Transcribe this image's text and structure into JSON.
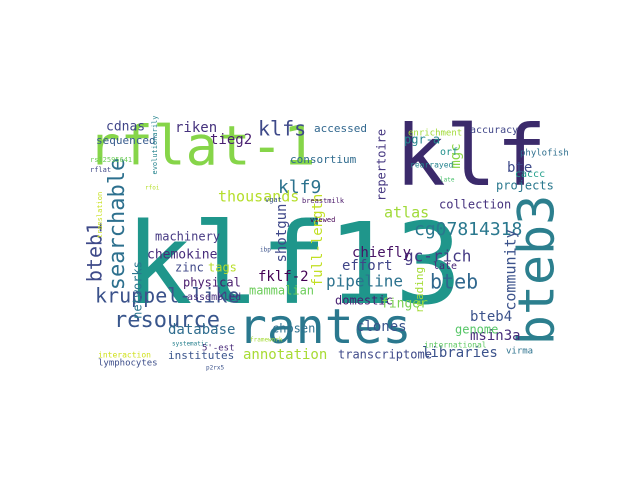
{
  "words": [
    {
      "text": "klf13",
      "color": "#1f968b"
    },
    {
      "text": "klf",
      "color": "#3b2a6b"
    },
    {
      "text": "rflat-1",
      "color": "#86d549"
    },
    {
      "text": "rantes",
      "color": "#2a788e"
    },
    {
      "text": "bteb3",
      "color": "#2c7f8e"
    },
    {
      "text": "bteb1",
      "color": "#3e4a89"
    },
    {
      "text": "searchable",
      "color": "#2d708e"
    },
    {
      "text": "kruppel-like",
      "color": "#3b528b"
    },
    {
      "text": "resource",
      "color": "#39568c"
    },
    {
      "text": "klfs",
      "color": "#3e4989"
    },
    {
      "text": "klf9",
      "color": "#2c728e"
    },
    {
      "text": "bteb",
      "color": "#31688e"
    },
    {
      "text": "cg07814318",
      "color": "#2a788e"
    },
    {
      "text": "atlas",
      "color": "#a0da39"
    },
    {
      "text": "gc-rich",
      "color": "#443983"
    },
    {
      "text": "pipeline",
      "color": "#2c728e"
    },
    {
      "text": "community",
      "color": "#3b528b"
    },
    {
      "text": "full-length",
      "color": "#c2df23"
    },
    {
      "text": "shotgun",
      "color": "#3f4889"
    },
    {
      "text": "thousands",
      "color": "#b5de2b"
    },
    {
      "text": "riken",
      "color": "#46337e"
    },
    {
      "text": "tieg2",
      "color": "#481f70"
    },
    {
      "text": "cdnas",
      "color": "#404588"
    },
    {
      "text": "sequenced",
      "color": "#375b8d"
    },
    {
      "text": "machinery",
      "color": "#453882"
    },
    {
      "text": "chemokine",
      "color": "#472d7b"
    },
    {
      "text": "annotation",
      "color": "#a8db34"
    },
    {
      "text": "transcriptome",
      "color": "#3e4989"
    },
    {
      "text": "libraries",
      "color": "#3b528b"
    },
    {
      "text": "msin3a",
      "color": "#472c7a"
    },
    {
      "text": "bteb4",
      "color": "#3b528b"
    },
    {
      "text": "genome",
      "color": "#56c667"
    },
    {
      "text": "database",
      "color": "#2f6c8e"
    },
    {
      "text": "fklf-2",
      "color": "#440154"
    },
    {
      "text": "mammalian",
      "color": "#6ccd5a"
    },
    {
      "text": "domestic",
      "color": "#482071"
    },
    {
      "text": "clones",
      "color": "#3a548c"
    },
    {
      "text": "chosen",
      "color": "#2d708e"
    },
    {
      "text": "physical",
      "color": "#481b6d"
    },
    {
      "text": "tags",
      "color": "#b8de29"
    },
    {
      "text": "zinc",
      "color": "#3f4788"
    },
    {
      "text": "assembled",
      "color": "#472f7d"
    },
    {
      "text": "networks",
      "color": "#2a768e"
    },
    {
      "text": "effort",
      "color": "#404588"
    },
    {
      "text": "chiefly",
      "color": "#471365"
    },
    {
      "text": "finger",
      "color": "#7ad151"
    },
    {
      "text": "reading",
      "color": "#a5db36"
    },
    {
      "text": "consortium",
      "color": "#2f6b8e"
    },
    {
      "text": "repertoire",
      "color": "#453781"
    },
    {
      "text": "accessed",
      "color": "#31678e"
    },
    {
      "text": "pgr-a",
      "color": "#25858e"
    },
    {
      "text": "mgc",
      "color": "#8bd646"
    },
    {
      "text": "orf",
      "color": "#21918c"
    },
    {
      "text": "bte",
      "color": "#3e4a89"
    },
    {
      "text": "projects",
      "color": "#2a788e"
    },
    {
      "text": "collection",
      "color": "#46327e"
    },
    {
      "text": "late",
      "color": "#482677"
    },
    {
      "text": "institutes",
      "color": "#3a548c"
    },
    {
      "text": "lymphocytes",
      "color": "#3d4e8a"
    },
    {
      "text": "accuracy",
      "color": "#404688"
    },
    {
      "text": "phylofish",
      "color": "#2e6f8e"
    },
    {
      "text": "caccc",
      "color": "#1f9e89"
    },
    {
      "text": "rearrayed",
      "color": "#25848e"
    },
    {
      "text": "enrichment",
      "color": "#a2da37"
    },
    {
      "text": "breastmilk",
      "color": "#481668"
    },
    {
      "text": "international",
      "color": "#5ec962"
    },
    {
      "text": "virma",
      "color": "#2c728e"
    },
    {
      "text": "5'-est",
      "color": "#472878"
    },
    {
      "text": "systematic",
      "color": "#27808e"
    },
    {
      "text": "p2rx5",
      "color": "#3b528b"
    },
    {
      "text": "interaction",
      "color": "#d0e11c"
    },
    {
      "text": "rs12595641",
      "color": "#6ece58"
    },
    {
      "text": "rflat",
      "color": "#3f4788"
    },
    {
      "text": "vgat",
      "color": "#3b528b"
    },
    {
      "text": "viewed",
      "color": "#440154"
    },
    {
      "text": "translation",
      "color": "#c8e020"
    },
    {
      "text": "evolutionarily",
      "color": "#25848e"
    },
    {
      "text": "rfoi",
      "color": "#b5de2b"
    },
    {
      "text": "late",
      "color": "#4ac16d"
    },
    {
      "text": "ibp",
      "color": "#3b528b"
    },
    {
      "text": "framework",
      "color": "#a5db36"
    }
  ]
}
